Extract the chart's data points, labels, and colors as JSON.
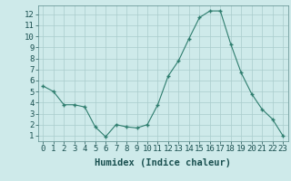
{
  "x": [
    0,
    1,
    2,
    3,
    4,
    5,
    6,
    7,
    8,
    9,
    10,
    11,
    12,
    13,
    14,
    15,
    16,
    17,
    18,
    19,
    20,
    21,
    22,
    23
  ],
  "y": [
    5.5,
    5.0,
    3.8,
    3.8,
    3.6,
    1.8,
    0.9,
    2.0,
    1.8,
    1.7,
    2.0,
    3.8,
    6.4,
    7.8,
    9.8,
    11.7,
    12.3,
    12.3,
    9.3,
    6.7,
    4.8,
    3.4,
    2.5,
    1.0
  ],
  "x_ticks": [
    0,
    1,
    2,
    3,
    4,
    5,
    6,
    7,
    8,
    9,
    10,
    11,
    12,
    13,
    14,
    15,
    16,
    17,
    18,
    19,
    20,
    21,
    22,
    23
  ],
  "y_ticks": [
    1,
    2,
    3,
    4,
    5,
    6,
    7,
    8,
    9,
    10,
    11,
    12
  ],
  "xlim": [
    -0.5,
    23.5
  ],
  "ylim": [
    0.5,
    12.8
  ],
  "xlabel": "Humidex (Indice chaleur)",
  "line_color": "#2e7d6e",
  "marker_color": "#2e7d6e",
  "bg_color": "#ceeaea",
  "grid_color": "#aacccc",
  "tick_fontsize": 6.5,
  "xlabel_fontsize": 7.5,
  "xlabel_color": "#1a5050",
  "tick_color": "#1a5050"
}
